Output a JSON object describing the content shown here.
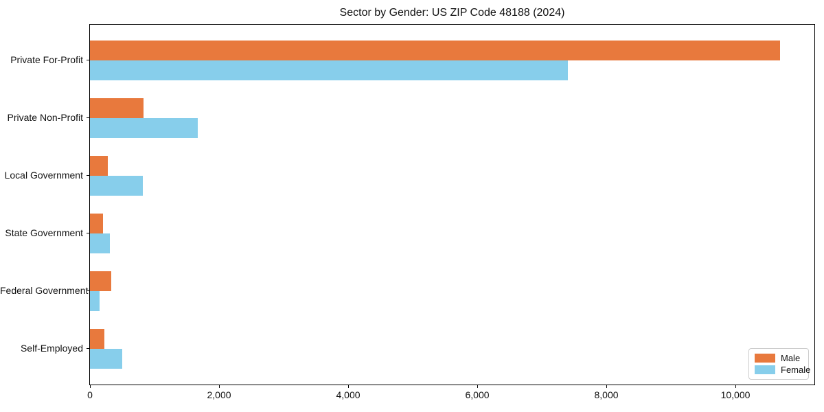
{
  "title": "Sector by Gender: US ZIP Code 48188 (2024)",
  "chart_data": {
    "type": "bar",
    "orientation": "horizontal",
    "title": "Sector by Gender: US ZIP Code 48188 (2024)",
    "xlabel": "",
    "ylabel": "",
    "categories": [
      "Private For-Profit",
      "Private Non-Profit",
      "Local Government",
      "State Government",
      "Federal Government",
      "Self-Employed"
    ],
    "series": [
      {
        "name": "Male",
        "color": "#e8793d",
        "values": [
          10690,
          830,
          280,
          200,
          330,
          220
        ]
      },
      {
        "name": "Female",
        "color": "#87ceeb",
        "values": [
          7400,
          1670,
          820,
          310,
          150,
          500
        ]
      }
    ],
    "xlim": [
      0,
      11225
    ],
    "xticks": [
      0,
      2000,
      4000,
      6000,
      8000,
      10000
    ],
    "xtick_labels": [
      "0",
      "2,000",
      "4,000",
      "6,000",
      "8,000",
      "10,000"
    ],
    "grid": false,
    "legend_position": "lower right"
  }
}
